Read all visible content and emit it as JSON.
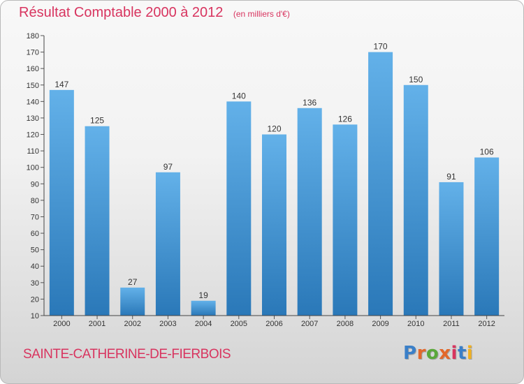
{
  "title": "Résultat Comptable 2000 à 2012",
  "unit_note": "(en milliers d'€)",
  "commune": "SAINTE-CATHERINE-DE-FIERBOIS",
  "logo": {
    "text": "Proxiti",
    "letter_colors": [
      "#3a7fc8",
      "#e2682b",
      "#5aa83a",
      "#e2682b",
      "#d8345f",
      "#3a7fc8",
      "#f0b020"
    ]
  },
  "colors": {
    "title": "#d8345f",
    "bar_top": "#63b1e9",
    "bar_bottom": "#2a78b8",
    "label": "#333333"
  },
  "chart_data": {
    "type": "bar",
    "categories": [
      "2000",
      "2001",
      "2002",
      "2003",
      "2004",
      "2005",
      "2006",
      "2007",
      "2008",
      "2009",
      "2010",
      "2011",
      "2012"
    ],
    "values": [
      147,
      125,
      27,
      97,
      19,
      140,
      120,
      136,
      126,
      170,
      150,
      91,
      106
    ],
    "ylim": [
      10,
      180
    ],
    "yticks": [
      10,
      20,
      30,
      40,
      50,
      60,
      70,
      80,
      90,
      100,
      110,
      120,
      130,
      140,
      150,
      160,
      170,
      180
    ],
    "grid": false
  }
}
